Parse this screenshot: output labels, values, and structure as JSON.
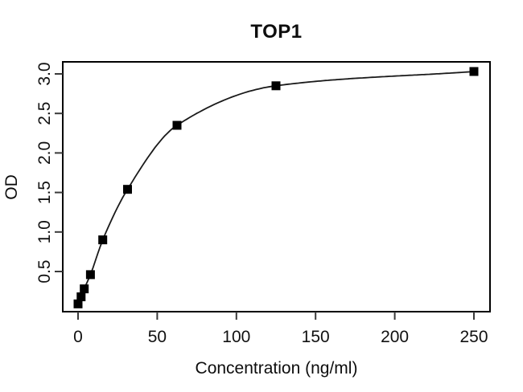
{
  "chart_data": {
    "type": "scatter",
    "title": "TOP1",
    "xlabel": "Concentration (ng/ml)",
    "ylabel": "OD",
    "x": [
      0,
      1.95,
      3.9,
      7.8,
      15.6,
      31.25,
      62.5,
      125,
      250
    ],
    "y": [
      0.09,
      0.18,
      0.28,
      0.46,
      0.9,
      1.54,
      2.35,
      2.85,
      3.03
    ],
    "x_ticks": [
      "0",
      "50",
      "100",
      "150",
      "200",
      "250"
    ],
    "y_ticks": [
      "0.5",
      "1.0",
      "1.5",
      "2.0",
      "2.5",
      "3.0"
    ],
    "xlim": [
      -10,
      260
    ],
    "ylim": [
      0,
      3.16
    ],
    "marker": "filled-square",
    "curve": "smooth-fit-through-points",
    "grid": false,
    "legend": null,
    "colors": {
      "background": "#ffffff",
      "marker": "#000000",
      "curve": "#1a1a1a",
      "box": "#000000",
      "tick": "#3a3a3a",
      "text": "#111111"
    }
  }
}
